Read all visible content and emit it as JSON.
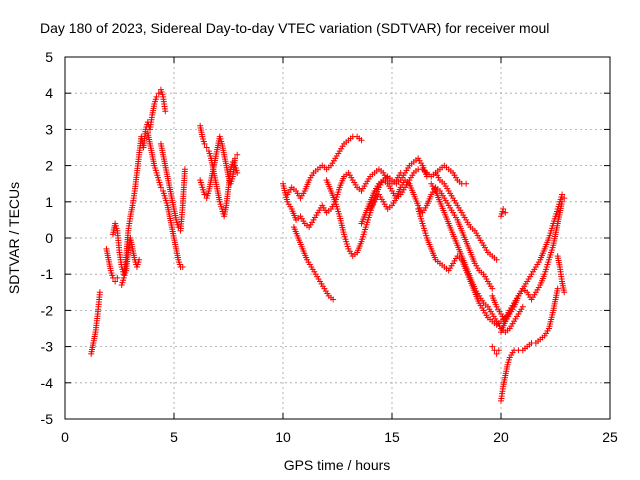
{
  "chart_data": {
    "type": "scatter",
    "title": "Day 180 of 2023, Sidereal Day-to-day VTEC variation (SDTVAR) for receiver moul",
    "xlabel": "GPS time / hours",
    "ylabel": "SDTVAR / TECUs",
    "xlim": [
      0,
      25
    ],
    "ylim": [
      -5,
      5
    ],
    "xticks": [
      "0",
      "5",
      "10",
      "15",
      "20",
      "25"
    ],
    "yticks": [
      "-5",
      "-4",
      "-3",
      "-2",
      "-1",
      "0",
      "1",
      "2",
      "3",
      "4",
      "5"
    ],
    "grid": true,
    "marker": "plus",
    "color": "#ff0000",
    "series": [
      {
        "x": [
          1.2,
          1.3,
          1.4,
          1.5,
          1.6
        ],
        "y": [
          -3.2,
          -2.9,
          -2.6,
          -2.1,
          -1.5
        ]
      },
      {
        "x": [
          1.9,
          2.0,
          2.1,
          2.2,
          2.3,
          2.4
        ],
        "y": [
          -0.3,
          -0.6,
          -0.9,
          -1.1,
          -1.2,
          -1.1
        ]
      },
      {
        "x": [
          2.2,
          2.3,
          2.4,
          2.5,
          2.6,
          2.7,
          2.8,
          2.9,
          3.0,
          3.1,
          3.2,
          3.3,
          3.4,
          3.5,
          3.6,
          3.7,
          3.8,
          3.9,
          4.0,
          4.1,
          4.2,
          4.3,
          4.4,
          4.5,
          4.6
        ],
        "y": [
          0.1,
          0.4,
          0.2,
          -0.4,
          -0.8,
          -1.0,
          -0.6,
          0.2,
          0.6,
          0.9,
          1.3,
          1.8,
          2.3,
          2.8,
          2.5,
          3.0,
          3.2,
          3.0,
          3.4,
          3.7,
          3.9,
          4.0,
          4.1,
          3.9,
          3.5
        ]
      },
      {
        "x": [
          2.6,
          2.7,
          2.8,
          2.9,
          3.0,
          3.1,
          3.2,
          3.3,
          3.4
        ],
        "y": [
          -1.3,
          -1.1,
          -0.9,
          -0.4,
          0.0,
          -0.3,
          -0.6,
          -0.8,
          -0.6
        ]
      },
      {
        "x": [
          3.8,
          3.9,
          4.0,
          4.1,
          4.2,
          4.3,
          4.4,
          4.5,
          4.6,
          4.7,
          4.8,
          4.9,
          5.0,
          5.1,
          5.2,
          5.3,
          5.4
        ],
        "y": [
          2.9,
          2.6,
          2.3,
          2.0,
          1.8,
          1.6,
          1.4,
          1.3,
          1.1,
          0.9,
          0.6,
          0.3,
          0.0,
          -0.3,
          -0.6,
          -0.8,
          -0.8
        ]
      },
      {
        "x": [
          4.4,
          4.5,
          4.6,
          4.7,
          4.8,
          4.9,
          5.0,
          5.1,
          5.2,
          5.3,
          5.4,
          5.5
        ],
        "y": [
          2.6,
          2.3,
          2.0,
          1.7,
          1.4,
          1.1,
          0.8,
          0.5,
          0.3,
          0.2,
          0.9,
          1.9
        ]
      },
      {
        "x": [
          6.2,
          6.3,
          6.4,
          6.5,
          6.6,
          6.7,
          6.8,
          6.9,
          7.0,
          7.1,
          7.2,
          7.3,
          7.4,
          7.5,
          7.6,
          7.7,
          7.8,
          7.9
        ],
        "y": [
          3.1,
          2.8,
          2.6,
          2.5,
          2.4,
          2.2,
          1.9,
          1.6,
          1.3,
          1.0,
          0.8,
          0.6,
          0.9,
          1.4,
          1.9,
          2.1,
          2.0,
          1.8
        ]
      },
      {
        "x": [
          6.2,
          6.3,
          6.4,
          6.5,
          6.6,
          6.7,
          6.8,
          6.9,
          7.0,
          7.1,
          7.2,
          7.3,
          7.4,
          7.5,
          7.6,
          7.7,
          7.8,
          7.9
        ],
        "y": [
          1.6,
          1.4,
          1.2,
          1.1,
          1.3,
          1.6,
          1.9,
          2.2,
          2.5,
          2.8,
          2.6,
          2.3,
          2.0,
          1.7,
          1.5,
          1.7,
          2.2,
          2.3
        ]
      },
      {
        "x": [
          10.0,
          10.2,
          10.4,
          10.6,
          10.8,
          11.0,
          11.2,
          11.4,
          11.6,
          11.8,
          12.0,
          12.2,
          12.4,
          12.6,
          12.8,
          13.0,
          13.2,
          13.4,
          13.6,
          13.8,
          14.0,
          14.2,
          14.4,
          14.6,
          14.8,
          15.0,
          15.2,
          15.4
        ],
        "y": [
          1.5,
          1.0,
          0.8,
          0.5,
          0.6,
          0.4,
          0.3,
          0.5,
          0.7,
          0.9,
          0.7,
          0.8,
          1.0,
          1.4,
          1.7,
          1.8,
          1.6,
          1.4,
          1.3,
          1.5,
          1.7,
          1.8,
          1.9,
          1.8,
          1.6,
          1.5,
          1.6,
          1.8
        ]
      },
      {
        "x": [
          10.5,
          10.7,
          10.9,
          11.1,
          11.3,
          11.5,
          11.7,
          11.9,
          12.1,
          12.3
        ],
        "y": [
          0.3,
          0.0,
          -0.3,
          -0.6,
          -0.8,
          -1.0,
          -1.2,
          -1.4,
          -1.6,
          -1.7
        ]
      },
      {
        "x": [
          10.2,
          10.4,
          10.6,
          10.8,
          11.0,
          11.2,
          11.4,
          11.6,
          11.8,
          12.0,
          12.2,
          12.4,
          12.6,
          12.8,
          13.0,
          13.2,
          13.4,
          13.6
        ],
        "y": [
          1.2,
          1.4,
          1.3,
          1.1,
          1.3,
          1.6,
          1.8,
          1.9,
          2.0,
          1.9,
          2.0,
          2.2,
          2.4,
          2.6,
          2.7,
          2.8,
          2.8,
          2.7
        ]
      },
      {
        "x": [
          12.0,
          12.2,
          12.4,
          12.6,
          12.8,
          13.0,
          13.2,
          13.4,
          13.6,
          13.8,
          14.0,
          14.2,
          14.4,
          14.6,
          14.8,
          15.0,
          15.2,
          15.4,
          15.6,
          15.8,
          16.0,
          16.2,
          16.4,
          16.6
        ],
        "y": [
          1.6,
          1.3,
          1.0,
          0.6,
          0.1,
          -0.3,
          -0.5,
          -0.4,
          -0.1,
          0.3,
          0.7,
          1.1,
          1.4,
          1.6,
          1.7,
          1.6,
          1.5,
          1.6,
          1.8,
          2.0,
          2.1,
          2.2,
          2.0,
          1.7
        ]
      },
      {
        "x": [
          13.6,
          13.8,
          14.0,
          14.2,
          14.4,
          14.6,
          14.8,
          15.0,
          15.2,
          15.4,
          15.6,
          15.8,
          16.0,
          16.2,
          16.4,
          16.6,
          16.8,
          17.0,
          17.2,
          17.4,
          17.6,
          17.8,
          18.0,
          18.2,
          18.4
        ],
        "y": [
          0.4,
          0.7,
          1.0,
          1.3,
          1.5,
          1.6,
          1.5,
          1.3,
          1.1,
          1.2,
          1.4,
          1.6,
          1.8,
          1.9,
          1.9,
          1.8,
          1.7,
          1.8,
          1.9,
          2.0,
          1.9,
          1.8,
          1.6,
          1.5,
          1.5
        ]
      },
      {
        "x": [
          14.0,
          14.2,
          14.4,
          14.6,
          14.8,
          15.0,
          15.2,
          15.4,
          15.6,
          15.8,
          16.0,
          16.2,
          16.4,
          16.6,
          16.8,
          17.0,
          17.2,
          17.4,
          17.6,
          17.8,
          18.0,
          18.2,
          18.4,
          18.6,
          18.8,
          19.0,
          19.2,
          19.4,
          19.6
        ],
        "y": [
          0.8,
          1.0,
          1.2,
          1.0,
          0.8,
          0.9,
          1.1,
          1.4,
          1.6,
          1.5,
          1.2,
          0.9,
          0.7,
          0.9,
          1.2,
          1.4,
          1.3,
          1.1,
          0.9,
          0.7,
          0.5,
          0.2,
          -0.1,
          -0.4,
          -0.7,
          -0.9,
          -1.0,
          -1.2,
          -1.4
        ]
      },
      {
        "x": [
          16.2,
          16.4,
          16.6,
          16.8,
          17.0,
          17.2,
          17.4,
          17.6,
          17.8,
          18.0,
          18.2,
          18.4,
          18.6,
          18.8,
          19.0,
          19.2,
          19.4,
          19.6,
          19.8,
          20.0,
          20.2,
          20.4,
          20.6,
          20.8
        ],
        "y": [
          0.8,
          0.4,
          0.0,
          -0.3,
          -0.6,
          -0.7,
          -0.8,
          -0.9,
          -0.7,
          -0.5,
          -0.6,
          -0.9,
          -1.2,
          -1.5,
          -1.8,
          -2.0,
          -2.2,
          -2.3,
          -2.4,
          -2.3,
          -2.2,
          -2.0,
          -1.8,
          -1.6
        ]
      },
      {
        "x": [
          16.8,
          17.0,
          17.2,
          17.4,
          17.6,
          17.8,
          18.0,
          18.2,
          18.4,
          18.6,
          18.8,
          19.0,
          19.2,
          19.4,
          19.6,
          19.8,
          20.0,
          20.2,
          20.4,
          20.6,
          20.8,
          21.0
        ],
        "y": [
          1.5,
          1.3,
          1.0,
          0.7,
          0.4,
          0.1,
          -0.2,
          -0.5,
          -0.8,
          -1.1,
          -1.4,
          -1.6,
          -1.8,
          -1.9,
          -2.1,
          -2.3,
          -2.5,
          -2.6,
          -2.5,
          -2.3,
          -2.1,
          -1.9
        ]
      },
      {
        "x": [
          17.0,
          17.2,
          17.4,
          17.6,
          17.8,
          18.0,
          18.2,
          18.4,
          18.6,
          18.8,
          19.0,
          19.2,
          19.4,
          19.6,
          19.8
        ],
        "y": [
          1.8,
          1.6,
          1.5,
          1.3,
          1.1,
          0.9,
          0.7,
          0.5,
          0.3,
          0.2,
          0.0,
          -0.2,
          -0.4,
          -0.5,
          -0.6
        ]
      },
      {
        "x": [
          19.6,
          19.8,
          20.0,
          20.2,
          20.4,
          20.6,
          20.8,
          21.0,
          21.2,
          21.4,
          21.6,
          21.8,
          22.0,
          22.2,
          22.4,
          22.6,
          22.8
        ],
        "y": [
          -1.6,
          -1.9,
          -2.1,
          -2.3,
          -2.1,
          -1.9,
          -1.6,
          -1.4,
          -1.5,
          -1.7,
          -1.5,
          -1.3,
          -1.0,
          -0.6,
          -0.2,
          0.4,
          1.0
        ]
      },
      {
        "x": [
          20.0,
          20.2,
          20.4,
          20.6,
          20.8,
          21.0,
          21.2,
          21.4,
          21.6,
          21.8,
          22.0,
          22.2,
          22.4,
          22.6,
          22.8,
          22.9
        ],
        "y": [
          -2.6,
          -2.3,
          -2.0,
          -1.8,
          -1.6,
          -1.4,
          -1.2,
          -1.0,
          -0.8,
          -0.6,
          -0.3,
          0.0,
          0.4,
          0.8,
          1.2,
          1.1
        ]
      },
      {
        "x": [
          20.0,
          20.1,
          20.2,
          20.3,
          20.4,
          20.6,
          20.8,
          21.0,
          21.2,
          21.4,
          21.6,
          21.8,
          22.0,
          22.2,
          22.4,
          22.6
        ],
        "y": [
          -4.5,
          -4.1,
          -3.8,
          -3.5,
          -3.3,
          -3.1,
          -3.1,
          -3.1,
          -3.0,
          -2.9,
          -2.9,
          -2.8,
          -2.7,
          -2.5,
          -2.0,
          -1.4
        ]
      },
      {
        "x": [
          22.6,
          22.7,
          22.8,
          22.9
        ],
        "y": [
          -0.5,
          -0.8,
          -1.2,
          -1.5
        ]
      },
      {
        "x": [
          19.6,
          19.7,
          19.8,
          19.9,
          20.0,
          20.1,
          20.2
        ],
        "y": [
          -3.0,
          -3.1,
          -3.2,
          -3.1,
          0.6,
          0.8,
          0.7
        ]
      }
    ]
  }
}
